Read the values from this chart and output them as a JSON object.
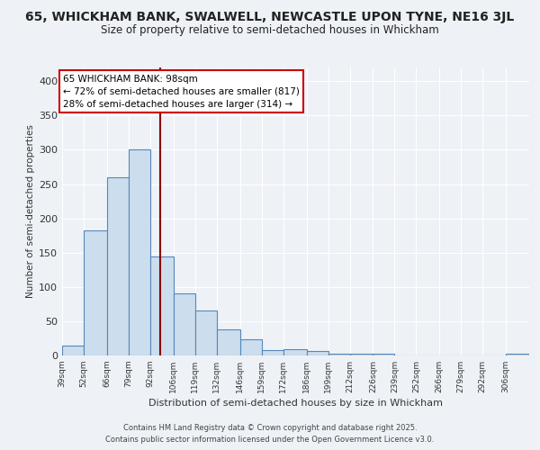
{
  "title1": "65, WHICKHAM BANK, SWALWELL, NEWCASTLE UPON TYNE, NE16 3JL",
  "title2": "Size of property relative to semi-detached houses in Whickham",
  "xlabel": "Distribution of semi-detached houses by size in Whickham",
  "ylabel": "Number of semi-detached properties",
  "bin_edges": [
    39,
    52,
    66,
    79,
    92,
    106,
    119,
    132,
    146,
    159,
    172,
    186,
    199,
    212,
    226,
    239,
    252,
    266,
    279,
    292,
    306
  ],
  "bar_heights": [
    15,
    182,
    260,
    300,
    145,
    90,
    65,
    38,
    24,
    8,
    9,
    7,
    3,
    2,
    2,
    0,
    0,
    0,
    0,
    0,
    2
  ],
  "bar_color": "#ccdded",
  "bar_edge_color": "#5588bb",
  "property_size": 98,
  "vline_color": "#8b0000",
  "annotation_text": "65 WHICKHAM BANK: 98sqm",
  "annotation_smaller": "← 72% of semi-detached houses are smaller (817)",
  "annotation_larger": "28% of semi-detached houses are larger (314) →",
  "annotation_fontsize": 7.5,
  "title1_fontsize": 10,
  "title2_fontsize": 8.5,
  "tick_labels": [
    "39sqm",
    "52sqm",
    "66sqm",
    "79sqm",
    "92sqm",
    "106sqm",
    "119sqm",
    "132sqm",
    "146sqm",
    "159sqm",
    "172sqm",
    "186sqm",
    "199sqm",
    "212sqm",
    "226sqm",
    "239sqm",
    "252sqm",
    "266sqm",
    "279sqm",
    "292sqm",
    "306sqm"
  ],
  "ylim": [
    0,
    420
  ],
  "yticks": [
    0,
    50,
    100,
    150,
    200,
    250,
    300,
    350,
    400
  ],
  "footer1": "Contains HM Land Registry data © Crown copyright and database right 2025.",
  "footer2": "Contains public sector information licensed under the Open Government Licence v3.0.",
  "background_color": "#eef2f7",
  "plot_background": "#eef2f7",
  "grid_color": "#ffffff",
  "text_color": "#222222",
  "footer_color": "#444444"
}
